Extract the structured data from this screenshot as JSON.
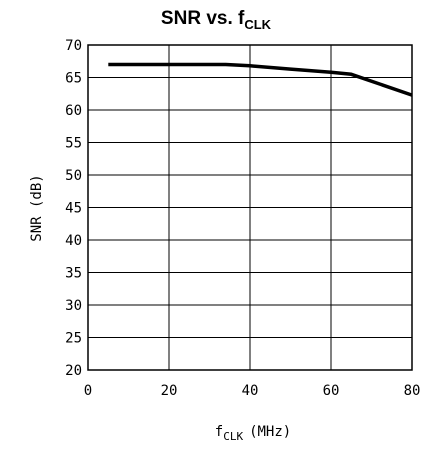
{
  "chart_data": {
    "type": "line",
    "title": "SNR vs. f",
    "title_subscript": "CLK",
    "xlabel": "f",
    "xlabel_subscript": "CLK",
    "xlabel_unit": "(MHz)",
    "ylabel": "SNR (dB)",
    "xlim": [
      0,
      80
    ],
    "ylim": [
      20,
      70
    ],
    "xticks": [
      0,
      20,
      40,
      60,
      80
    ],
    "yticks": [
      20,
      25,
      30,
      35,
      40,
      45,
      50,
      55,
      60,
      65,
      70
    ],
    "grid": true,
    "series": [
      {
        "x": [
          5,
          20,
          34,
          40,
          50,
          60,
          65,
          80
        ],
        "y": [
          67,
          67,
          67,
          66.8,
          66.3,
          65.8,
          65.5,
          62.3
        ]
      }
    ]
  },
  "colors": {
    "line": "#000000",
    "grid": "#000000",
    "background": "#ffffff"
  }
}
